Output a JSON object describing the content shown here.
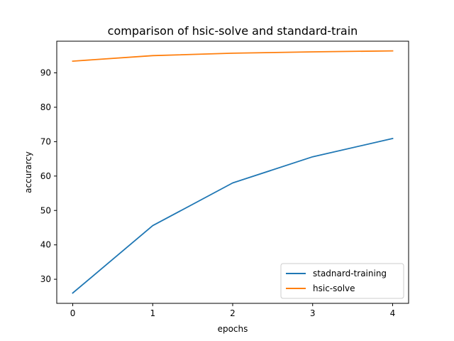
{
  "chart_data": {
    "type": "line",
    "title": "comparison of hsic-solve and standard-train",
    "xlabel": "epochs",
    "ylabel": "accurarcy",
    "x": [
      0,
      1,
      2,
      3,
      4
    ],
    "xlim": [
      -0.2,
      4.2
    ],
    "ylim": [
      23,
      99.2
    ],
    "xticks": [
      0,
      1,
      2,
      3,
      4
    ],
    "yticks": [
      30,
      40,
      50,
      60,
      70,
      80,
      90
    ],
    "grid": false,
    "legend_position": "lower-right",
    "series": [
      {
        "name": "stadnard-training",
        "color": "#1f77b4",
        "values": [
          26.0,
          45.6,
          58.0,
          65.6,
          70.9
        ]
      },
      {
        "name": "hsic-solve",
        "color": "#ff7f0e",
        "values": [
          93.4,
          95.0,
          95.7,
          96.1,
          96.4
        ]
      }
    ]
  }
}
